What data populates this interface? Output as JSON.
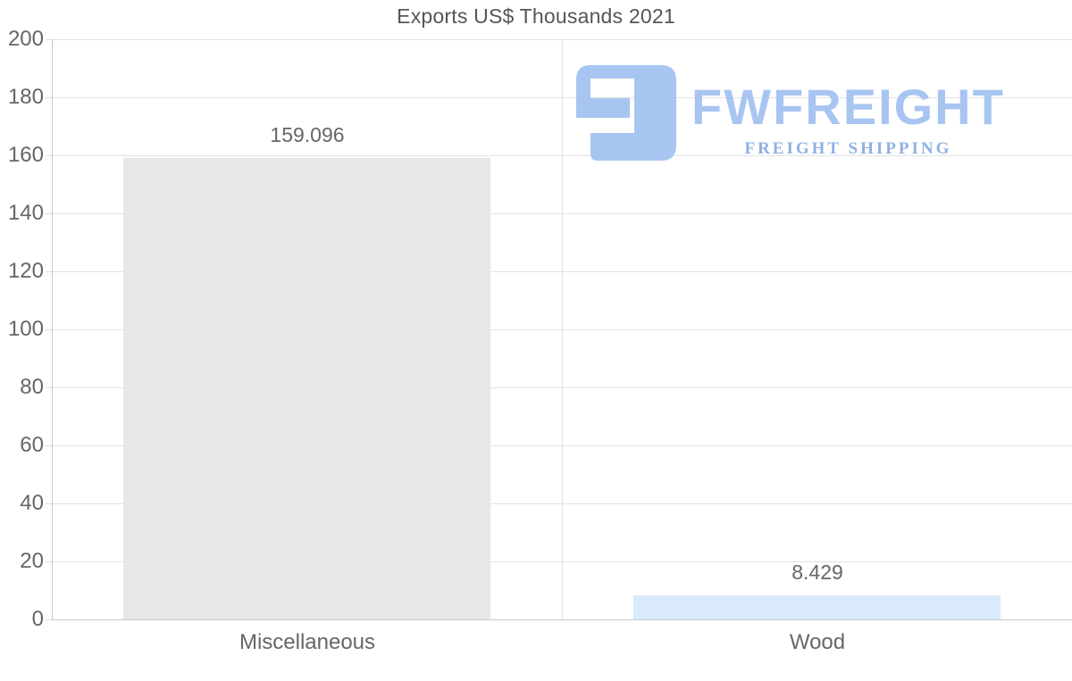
{
  "title": "Exports US$ Thousands 2021",
  "logo": {
    "name": "FWFREIGHT",
    "tagline": "FREIGHT SHIPPING",
    "icon": "fwfreight-mark-icon",
    "name_color": "#a8c5f2",
    "tagline_color": "#8fb1e4"
  },
  "chart_data": {
    "type": "bar",
    "title": "Exports US$ Thousands 2021",
    "categories": [
      "Miscellaneous",
      "Wood"
    ],
    "values": [
      159.096,
      8.429
    ],
    "value_labels": [
      "159.096",
      "8.429"
    ],
    "bar_colors": [
      "#e7e7e7",
      "#d9eafa"
    ],
    "xlabel": "",
    "ylabel": "",
    "ylim": [
      0,
      200
    ],
    "ytick_step": 20,
    "ytick_labels": [
      "0",
      "20",
      "40",
      "60",
      "80",
      "100",
      "120",
      "140",
      "160",
      "180",
      "200"
    ],
    "grid": true,
    "legend": false,
    "colors": {
      "gridline": "#e3e3e3",
      "axis": "#c9c9c9",
      "tick": "#dcdcdc",
      "axis_text": "#666666",
      "title_text": "#565658"
    }
  }
}
